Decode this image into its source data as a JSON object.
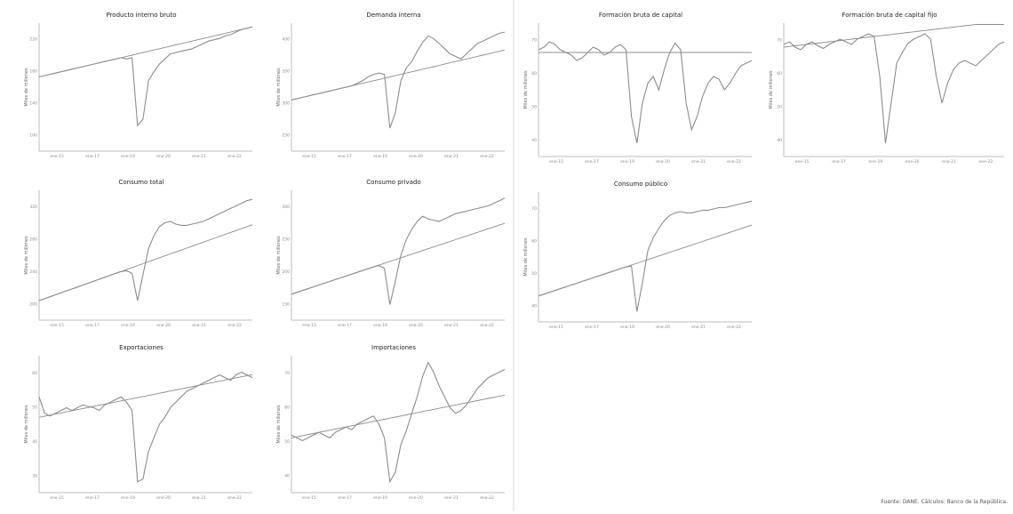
{
  "source": "Fuente: DANE. Cálculos: Banco de la República.",
  "colors": {
    "series": "#8c8c8c",
    "axis": "#bdbdbd",
    "divider": "#d9d9d9"
  },
  "chart_data": [
    {
      "id": "pib",
      "type": "line",
      "title": "Producto interno bruto",
      "ylabel": "Miles de millones",
      "yticks": [
        "100",
        "140",
        "180",
        "220"
      ],
      "xticks": [
        "ene-15",
        "ene-17",
        "ene-19",
        "ene-20",
        "ene-21",
        "ene-22"
      ],
      "ylim": [
        0,
        100
      ],
      "series": [
        {
          "values": [
            58,
            59,
            60,
            61,
            62,
            63,
            64,
            65,
            66,
            67,
            68,
            69,
            70,
            71,
            72,
            73,
            74,
            75,
            76,
            77,
            78,
            79,
            80,
            81,
            82,
            83,
            84,
            85,
            86,
            87,
            88,
            89,
            90,
            91,
            92,
            93,
            94,
            95,
            96,
            97
          ]
        },
        {
          "values": [
            58,
            59,
            60,
            61,
            62,
            63,
            64,
            65,
            66,
            67,
            68,
            69,
            70,
            71,
            72,
            73,
            72,
            73,
            20,
            25,
            55,
            62,
            68,
            72,
            76,
            77,
            78,
            79,
            80,
            82,
            84,
            86,
            87,
            88,
            90,
            91,
            93,
            95,
            96,
            97
          ]
        }
      ]
    },
    {
      "id": "demanda-interna",
      "type": "line",
      "title": "Demanda interna",
      "ylabel": "Miles de millones",
      "yticks": [
        "250",
        "300",
        "350",
        "400"
      ],
      "xticks": [
        "ene-15",
        "ene-17",
        "ene-19",
        "ene-20",
        "ene-21",
        "ene-22"
      ],
      "ylim": [
        0,
        100
      ],
      "series": [
        {
          "values": [
            40,
            41,
            42,
            43,
            44,
            45,
            46,
            47,
            48,
            49,
            50,
            51,
            52,
            53,
            54,
            55,
            56,
            57,
            58,
            59,
            60,
            61,
            62,
            63,
            64,
            65,
            66,
            67,
            68,
            69,
            70,
            71,
            72,
            73,
            74,
            75,
            76,
            77,
            78,
            79
          ]
        },
        {
          "values": [
            40,
            41,
            42,
            43,
            44,
            45,
            46,
            47,
            48,
            49,
            50,
            51,
            53,
            55,
            58,
            60,
            61,
            60,
            18,
            30,
            55,
            65,
            70,
            78,
            85,
            90,
            88,
            84,
            80,
            76,
            74,
            72,
            76,
            80,
            84,
            86,
            88,
            90,
            92,
            93
          ]
        }
      ]
    },
    {
      "id": "fbk",
      "type": "line",
      "title": "Formación bruta de capital",
      "ylabel": "Miles de millones",
      "yticks": [
        "40",
        "50",
        "60",
        "70"
      ],
      "xticks": [
        "ene-15",
        "ene-17",
        "ene-19",
        "ene-20",
        "ene-21",
        "ene-22"
      ],
      "ylim": [
        0,
        100
      ],
      "series": [
        {
          "values": [
            78,
            78,
            78,
            78,
            78,
            78,
            78,
            78,
            78,
            78,
            78,
            78,
            78,
            78,
            78,
            78,
            78,
            78,
            78,
            78,
            78,
            78,
            78,
            78,
            78,
            78,
            78,
            78,
            78,
            78,
            78,
            78,
            78,
            78,
            78,
            78,
            78,
            78,
            78,
            78
          ]
        },
        {
          "values": [
            80,
            82,
            86,
            84,
            80,
            78,
            76,
            72,
            74,
            78,
            82,
            80,
            76,
            78,
            82,
            84,
            80,
            30,
            10,
            40,
            55,
            60,
            50,
            65,
            78,
            85,
            80,
            40,
            20,
            30,
            45,
            55,
            60,
            58,
            50,
            55,
            62,
            68,
            70,
            72
          ]
        }
      ]
    },
    {
      "id": "fbkf",
      "type": "line",
      "title": "Formación bruta de capital fijo",
      "ylabel": "Miles de millones",
      "yticks": [
        "40",
        "50",
        "60",
        "70"
      ],
      "xticks": [
        "ene-15",
        "ene-17",
        "ene-19",
        "ene-20",
        "ene-21",
        "ene-22"
      ],
      "ylim": [
        0,
        100
      ],
      "series": [
        {
          "values": [
            82,
            82.5,
            83,
            83.5,
            84,
            84.5,
            85,
            85.5,
            86,
            86.5,
            87,
            87.5,
            88,
            88.5,
            89,
            89.5,
            90,
            90.5,
            91,
            91.5,
            92,
            92.5,
            93,
            93.5,
            94,
            94.5,
            95,
            95.5,
            96,
            96.5,
            97,
            97.5,
            98,
            98.5,
            99,
            99,
            99,
            99,
            99,
            99
          ]
        },
        {
          "values": [
            84,
            86,
            82,
            80,
            84,
            86,
            83,
            81,
            84,
            86,
            88,
            86,
            84,
            88,
            90,
            92,
            90,
            60,
            10,
            40,
            70,
            78,
            85,
            88,
            90,
            92,
            88,
            60,
            40,
            55,
            65,
            70,
            72,
            70,
            68,
            72,
            76,
            80,
            84,
            86
          ]
        }
      ]
    },
    {
      "id": "consumo-total",
      "type": "line",
      "title": "Consumo total",
      "ylabel": "Miles de millones",
      "yticks": [
        "200",
        "240",
        "280",
        "320"
      ],
      "xticks": [
        "ene-15",
        "ene-17",
        "ene-19",
        "ene-20",
        "ene-21",
        "ene-22"
      ],
      "ylim": [
        0,
        100
      ],
      "series": [
        {
          "values": [
            15,
            16.5,
            18,
            19.5,
            21,
            22.5,
            24,
            25.5,
            27,
            28.5,
            30,
            31.5,
            33,
            34.5,
            36,
            37.5,
            39,
            40.5,
            42,
            43.5,
            45,
            46.5,
            48,
            49.5,
            51,
            52.5,
            54,
            55.5,
            57,
            58.5,
            60,
            61.5,
            63,
            64.5,
            66,
            67.5,
            69,
            70.5,
            72,
            73.5
          ]
        },
        {
          "values": [
            15,
            16.5,
            18,
            19.5,
            21,
            22.5,
            24,
            25.5,
            27,
            28.5,
            30,
            31.5,
            33,
            34.5,
            36,
            37.5,
            38,
            36,
            15,
            35,
            55,
            65,
            72,
            75,
            76,
            74,
            73,
            73,
            74,
            75,
            76,
            78,
            80,
            82,
            84,
            86,
            88,
            90,
            92,
            93
          ]
        }
      ]
    },
    {
      "id": "consumo-privado",
      "type": "line",
      "title": "Consumo privado",
      "ylabel": "Miles de millones",
      "yticks": [
        "150",
        "200",
        "250",
        "300"
      ],
      "xticks": [
        "ene-15",
        "ene-17",
        "ene-19",
        "ene-20",
        "ene-21",
        "ene-22"
      ],
      "ylim": [
        0,
        100
      ],
      "series": [
        {
          "values": [
            20,
            21.4,
            22.8,
            24.2,
            25.6,
            27,
            28.4,
            29.8,
            31.2,
            32.6,
            34,
            35.4,
            36.8,
            38.2,
            39.6,
            41,
            42.4,
            43.8,
            45.2,
            46.6,
            48,
            49.4,
            50.8,
            52.2,
            53.6,
            55,
            56.4,
            57.8,
            59.2,
            60.6,
            62,
            63.4,
            64.8,
            66.2,
            67.6,
            69,
            70.4,
            71.8,
            73.2,
            74.6
          ]
        },
        {
          "values": [
            20,
            21.4,
            22.8,
            24.2,
            25.6,
            27,
            28.4,
            29.8,
            31.2,
            32.6,
            34,
            35.4,
            36.8,
            38.2,
            39.6,
            41,
            42,
            40,
            12,
            30,
            50,
            62,
            70,
            76,
            80,
            78,
            77,
            76,
            78,
            80,
            82,
            83,
            84,
            85,
            86,
            87,
            88,
            90,
            92,
            94
          ]
        }
      ]
    },
    {
      "id": "consumo-publico",
      "type": "line",
      "title": "Consumo público",
      "ylabel": "Miles de millones",
      "yticks": [
        "40",
        "50",
        "60",
        "70"
      ],
      "xticks": [
        "ene-15",
        "ene-17",
        "ene-19",
        "ene-20",
        "ene-21",
        "ene-22"
      ],
      "ylim": [
        0,
        100
      ],
      "series": [
        {
          "values": [
            20,
            21.4,
            22.8,
            24.2,
            25.6,
            27,
            28.4,
            29.8,
            31.2,
            32.6,
            34,
            35.4,
            36.8,
            38.2,
            39.6,
            41,
            42.4,
            43.8,
            45.2,
            46.6,
            48,
            49.4,
            50.8,
            52.2,
            53.6,
            55,
            56.4,
            57.8,
            59.2,
            60.6,
            62,
            63.4,
            64.8,
            66.2,
            67.6,
            69,
            70.4,
            71.8,
            73.2,
            74.6
          ]
        },
        {
          "values": [
            20,
            21.4,
            22.8,
            24.2,
            25.6,
            27,
            28.4,
            29.8,
            31.2,
            32.6,
            34,
            35.4,
            36.8,
            38.2,
            39.6,
            41,
            42.4,
            43,
            8,
            30,
            55,
            65,
            72,
            78,
            82,
            84,
            85,
            84,
            84,
            85,
            86,
            86,
            87,
            88,
            88,
            89,
            90,
            91,
            92,
            93
          ]
        }
      ]
    },
    {
      "id": "exportaciones",
      "type": "line",
      "title": "Exportaciones",
      "ylabel": "Miles de millones",
      "yticks": [
        "30",
        "40",
        "50",
        "60"
      ],
      "xticks": [
        "ene-15",
        "ene-17",
        "ene-19",
        "ene-20",
        "ene-21",
        "ene-22"
      ],
      "ylim": [
        0,
        100
      ],
      "series": [
        {
          "values": [
            55,
            55.8,
            56.6,
            57.4,
            58.2,
            59,
            59.8,
            60.6,
            61.4,
            62.2,
            63,
            63.8,
            64.6,
            65.4,
            66.2,
            67,
            67.8,
            68.6,
            69.4,
            70.2,
            71,
            71.8,
            72.6,
            73.4,
            74.2,
            75,
            75.8,
            76.6,
            77.4,
            78.2,
            79,
            79.8,
            80.6,
            81.4,
            82.2,
            83,
            83.8,
            84.6,
            85.4,
            86.2
          ]
        },
        {
          "values": [
            70,
            58,
            56,
            58,
            60,
            62,
            60,
            62,
            64,
            63,
            62,
            60,
            64,
            66,
            68,
            70,
            66,
            60,
            8,
            10,
            30,
            40,
            50,
            55,
            62,
            66,
            70,
            74,
            76,
            78,
            80,
            82,
            84,
            86,
            84,
            82,
            86,
            88,
            86,
            84
          ]
        }
      ]
    },
    {
      "id": "importaciones",
      "type": "line",
      "title": "Importaciones",
      "ylabel": "Miles de millones",
      "yticks": [
        "40",
        "50",
        "60",
        "70"
      ],
      "xticks": [
        "ene-15",
        "ene-17",
        "ene-19",
        "ene-20",
        "ene-21",
        "ene-22"
      ],
      "ylim": [
        0,
        100
      ],
      "series": [
        {
          "values": [
            40,
            40.8,
            41.6,
            42.4,
            43.2,
            44,
            44.8,
            45.6,
            46.4,
            47.2,
            48,
            48.8,
            49.6,
            50.4,
            51.2,
            52,
            52.8,
            53.6,
            54.4,
            55.2,
            56,
            56.8,
            57.6,
            58.4,
            59.2,
            60,
            60.8,
            61.6,
            62.4,
            63.2,
            64,
            64.8,
            65.6,
            66.4,
            67.2,
            68,
            68.8,
            69.6,
            70.4,
            71.2
          ]
        },
        {
          "values": [
            42,
            40,
            38,
            40,
            42,
            44,
            42,
            40,
            44,
            46,
            48,
            46,
            50,
            52,
            54,
            56,
            50,
            40,
            8,
            15,
            35,
            45,
            58,
            70,
            85,
            95,
            88,
            78,
            70,
            62,
            58,
            60,
            64,
            70,
            76,
            80,
            84,
            86,
            88,
            90
          ]
        }
      ]
    }
  ]
}
